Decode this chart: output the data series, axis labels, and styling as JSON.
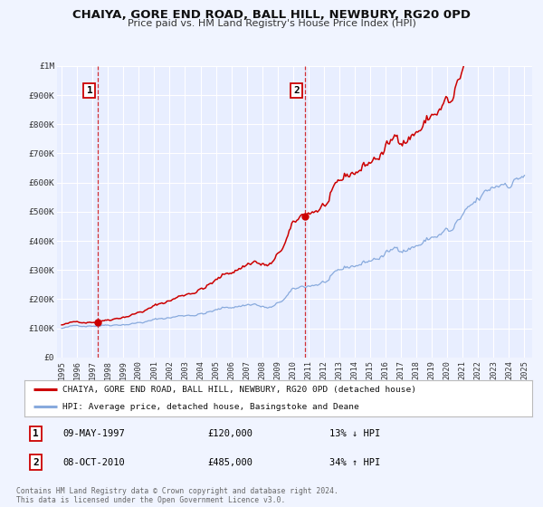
{
  "title": "CHAIYA, GORE END ROAD, BALL HILL, NEWBURY, RG20 0PD",
  "subtitle": "Price paid vs. HM Land Registry's House Price Index (HPI)",
  "ylim": [
    0,
    1000000
  ],
  "yticks": [
    0,
    100000,
    200000,
    300000,
    400000,
    500000,
    600000,
    700000,
    800000,
    900000,
    1000000
  ],
  "ytick_labels": [
    "£0",
    "£100K",
    "£200K",
    "£300K",
    "£400K",
    "£500K",
    "£600K",
    "£700K",
    "£800K",
    "£900K",
    "£1M"
  ],
  "xlim_start": 1994.7,
  "xlim_end": 2025.5,
  "xticks": [
    1995,
    1996,
    1997,
    1998,
    1999,
    2000,
    2001,
    2002,
    2003,
    2004,
    2005,
    2006,
    2007,
    2008,
    2009,
    2010,
    2011,
    2012,
    2013,
    2014,
    2015,
    2016,
    2017,
    2018,
    2019,
    2020,
    2021,
    2022,
    2023,
    2024,
    2025
  ],
  "bg_color": "#f0f4ff",
  "plot_bg_color": "#e8eeff",
  "grid_color": "#ffffff",
  "red_line_color": "#cc0000",
  "blue_line_color": "#88aadd",
  "sale1_x": 1997.36,
  "sale1_y": 120000,
  "sale1_label": "1",
  "sale1_date": "09-MAY-1997",
  "sale1_price": "£120,000",
  "sale1_hpi": "13% ↓ HPI",
  "sale2_x": 2010.77,
  "sale2_y": 485000,
  "sale2_label": "2",
  "sale2_date": "08-OCT-2010",
  "sale2_price": "£485,000",
  "sale2_hpi": "34% ↑ HPI",
  "legend_line1": "CHAIYA, GORE END ROAD, BALL HILL, NEWBURY, RG20 0PD (detached house)",
  "legend_line2": "HPI: Average price, detached house, Basingstoke and Deane",
  "footer1": "Contains HM Land Registry data © Crown copyright and database right 2024.",
  "footer2": "This data is licensed under the Open Government Licence v3.0."
}
